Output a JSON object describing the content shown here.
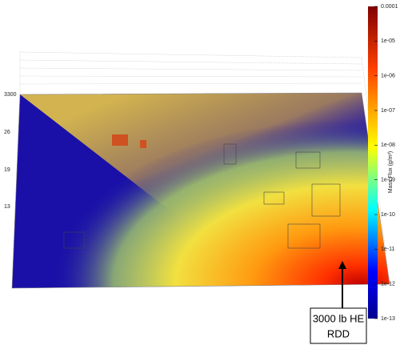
{
  "chart_data": {
    "type": "surface-map",
    "colorbar_label": "Mass Flux (g/m²)",
    "clim": [
      1e-13,
      0.0001
    ],
    "log_scale": true,
    "cticks": [
      0.0001,
      {
        "value": 1e-05,
        "label": "1e-05"
      },
      {
        "value": 1e-06,
        "label": "1e-06"
      },
      {
        "value": 1e-07,
        "label": "1e-07"
      },
      {
        "value": 1e-08,
        "label": "1e-08"
      },
      {
        "value": 1e-09,
        "label": "1e-09"
      },
      {
        "value": 1e-10,
        "label": "1e-10"
      },
      {
        "value": 1e-11,
        "label": "1e-11"
      },
      {
        "value": 1e-12,
        "label": "1e-12"
      },
      {
        "value": 1e-13,
        "label": "1e-13"
      }
    ],
    "y_tick_texts": [
      "3300",
      "26",
      "19",
      "13"
    ],
    "annotation": [
      "3000 lb HE",
      "RDD"
    ]
  }
}
